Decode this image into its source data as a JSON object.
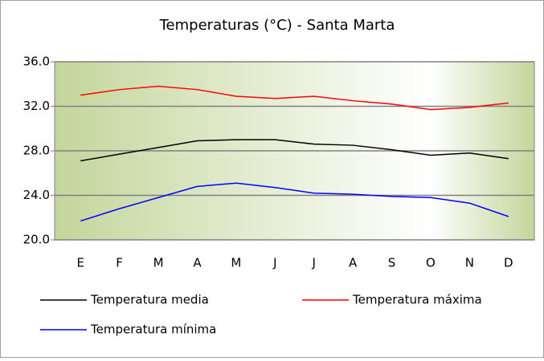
{
  "chart_data": {
    "type": "line",
    "title": "Temperaturas (°C) - Santa Marta",
    "categories": [
      "E",
      "F",
      "M",
      "A",
      "M",
      "J",
      "J",
      "A",
      "S",
      "O",
      "N",
      "D"
    ],
    "series": [
      {
        "name": "Temperatura media",
        "color": "#000000",
        "values": [
          27.1,
          27.7,
          28.3,
          28.9,
          29.0,
          29.0,
          28.6,
          28.5,
          28.1,
          27.6,
          27.8,
          27.3
        ]
      },
      {
        "name": "Temperatura máxima",
        "color": "#ff0000",
        "values": [
          33.0,
          33.5,
          33.8,
          33.5,
          32.9,
          32.7,
          32.9,
          32.5,
          32.2,
          31.7,
          31.9,
          32.3
        ]
      },
      {
        "name": "Temperatura mínima",
        "color": "#0000ff",
        "values": [
          21.7,
          22.8,
          23.8,
          24.8,
          25.1,
          24.7,
          24.2,
          24.1,
          23.9,
          23.8,
          23.3,
          22.1
        ]
      }
    ],
    "ylim": [
      20,
      36
    ],
    "yticks": [
      {
        "value": 20,
        "label": "20.0"
      },
      {
        "value": 24,
        "label": "24.0"
      },
      {
        "value": 28,
        "label": "28.0"
      },
      {
        "value": 32,
        "label": "32.0"
      },
      {
        "value": 36,
        "label": "36.0"
      }
    ],
    "grid": true
  }
}
